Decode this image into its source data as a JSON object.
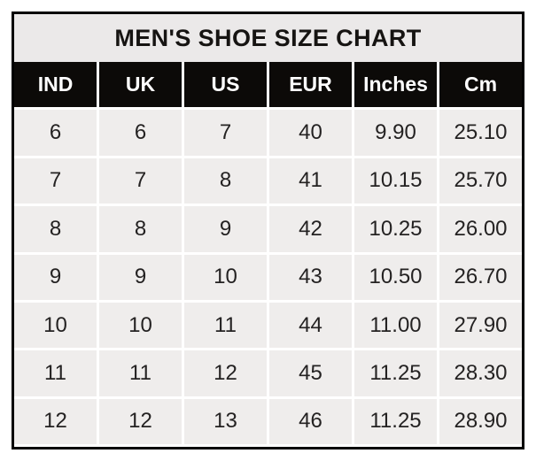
{
  "title": "MEN'S SHOE SIZE CHART",
  "chart_data": {
    "type": "table",
    "title": "MEN'S SHOE SIZE CHART",
    "columns": [
      "IND",
      "UK",
      "US",
      "EUR",
      "Inches",
      "Cm"
    ],
    "rows": [
      [
        "6",
        "6",
        "7",
        "40",
        "9.90",
        "25.10"
      ],
      [
        "7",
        "7",
        "8",
        "41",
        "10.15",
        "25.70"
      ],
      [
        "8",
        "8",
        "9",
        "42",
        "10.25",
        "26.00"
      ],
      [
        "9",
        "9",
        "10",
        "43",
        "10.50",
        "26.70"
      ],
      [
        "10",
        "10",
        "11",
        "44",
        "11.00",
        "27.90"
      ],
      [
        "11",
        "11",
        "12",
        "45",
        "11.25",
        "28.30"
      ],
      [
        "12",
        "12",
        "13",
        "46",
        "11.25",
        "28.90"
      ]
    ]
  },
  "colors": {
    "outer_border": "#000000",
    "title_background": "#ebe9e9",
    "header_background": "#0c0a08",
    "header_text": "#ffffff",
    "cell_background": "#efedec",
    "cell_text": "#242222",
    "grid_lines": "#ffffff",
    "page_background": "#ffffff"
  }
}
